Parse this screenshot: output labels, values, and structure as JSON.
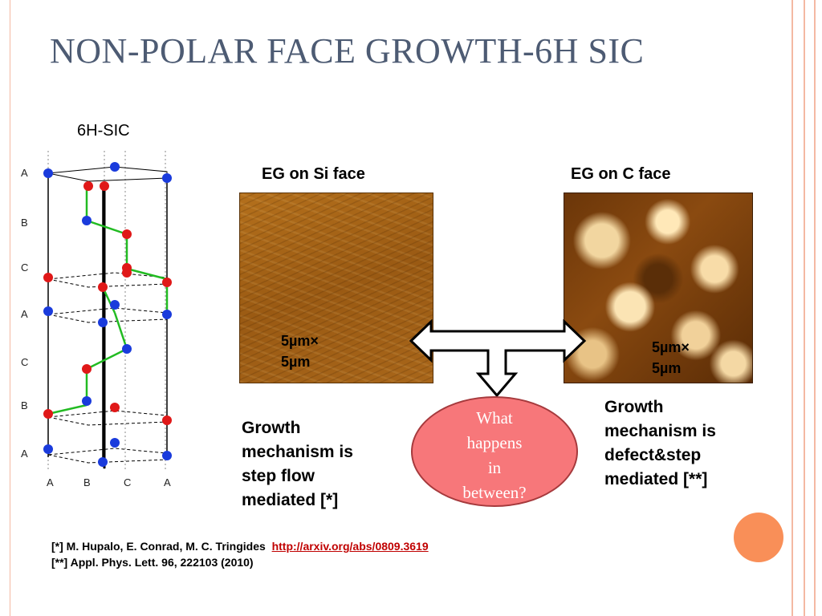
{
  "slide": {
    "title": "NON-POLAR FACE GROWTH-6H SIC"
  },
  "crystal": {
    "title": "6H-SIC",
    "layer_labels": [
      "A",
      "B",
      "C",
      "A",
      "C",
      "B",
      "A"
    ],
    "bottom_labels": [
      "A",
      "B",
      "C",
      "A"
    ]
  },
  "si_face": {
    "label": "EG on Si face",
    "scale_line1": "5µm×",
    "scale_line2": "5µm",
    "mechanism": [
      "Growth",
      "mechanism is",
      "step flow",
      "mediated [*]"
    ]
  },
  "c_face": {
    "label": "EG on C face",
    "scale_line1": "5µm×",
    "scale_line2": "5µm",
    "mechanism": [
      "Growth",
      "mechanism is",
      "defect&step",
      "mediated [**]"
    ]
  },
  "bubble": {
    "lines": [
      "What",
      "happens",
      "in",
      "between?"
    ]
  },
  "references": {
    "ref1_text": "[*] M. Hupalo, E. Conrad, M. C. Tringides",
    "ref1_link": "http://arxiv.org/abs/0809.3619",
    "ref2_text": "[**]  Appl. Phys. Lett. 96, 222103 (2010)"
  },
  "colors": {
    "title": "#4d5b73",
    "border": "#f4b9a3",
    "atom_blue": "#1a3bdc",
    "atom_red": "#e01818",
    "bond_green": "#22bb22",
    "bubble_fill": "#f7777a",
    "link": "#c00000",
    "accent_dot": "#f98f58"
  }
}
